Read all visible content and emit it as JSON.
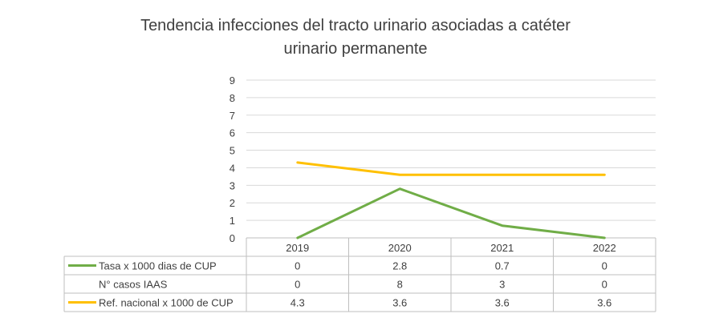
{
  "chart_data": {
    "type": "line",
    "title": "Tendencia infecciones del tracto urinario asociadas a catéter\nurinario permanente",
    "categories": [
      "2019",
      "2020",
      "2021",
      "2022"
    ],
    "ylim": [
      0,
      9
    ],
    "yticks": [
      "0",
      "1",
      "2",
      "3",
      "4",
      "5",
      "6",
      "7",
      "8",
      "9"
    ],
    "grid": true,
    "legend": "data-table",
    "series": [
      {
        "name": "Tasa x 1000 dias de CUP",
        "values": [
          0,
          2.8,
          0.7,
          0
        ],
        "labels": [
          "0",
          "2.8",
          "0.7",
          "0"
        ],
        "color": "#70AD47",
        "plotted": true
      },
      {
        "name": "N° casos  IAAS",
        "values": [
          0,
          8,
          3,
          0
        ],
        "labels": [
          "0",
          "8",
          "3",
          "0"
        ],
        "color": "",
        "plotted": false
      },
      {
        "name": "Ref. nacional x 1000 de CUP",
        "values": [
          4.3,
          3.6,
          3.6,
          3.6
        ],
        "labels": [
          "4.3",
          "3.6",
          "3.6",
          "3.6"
        ],
        "color": "#FFC000",
        "plotted": true
      }
    ]
  }
}
